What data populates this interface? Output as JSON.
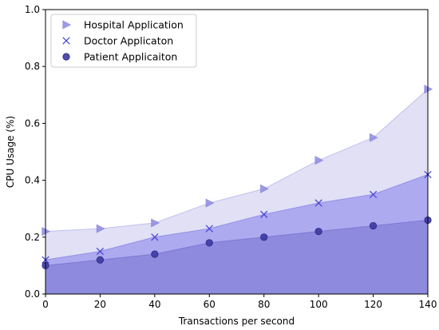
{
  "chart_data": {
    "type": "area",
    "xlabel": "Transactions per second",
    "ylabel": "CPU Usage (%)",
    "x": [
      0,
      20,
      40,
      60,
      80,
      100,
      120,
      140
    ],
    "xlim": [
      0,
      140
    ],
    "ylim": [
      0.0,
      1.0
    ],
    "xticks": [
      0,
      20,
      40,
      60,
      80,
      100,
      120,
      140
    ],
    "yticks": [
      0.0,
      0.2,
      0.4,
      0.6,
      0.8,
      1.0
    ],
    "xtick_labels": [
      "0",
      "20",
      "40",
      "60",
      "80",
      "100",
      "120",
      "140"
    ],
    "ytick_labels": [
      "0.0",
      "0.2",
      "0.4",
      "0.6",
      "0.8",
      "1.0"
    ],
    "grid": false,
    "legend_position": "top-left",
    "series": [
      {
        "name": "Hospital Application",
        "marker": "triangle-right",
        "fill_color": "#e1e0f5",
        "line_color": "#c2c1ec",
        "marker_color": "#8e8be0",
        "values": [
          0.22,
          0.23,
          0.25,
          0.32,
          0.37,
          0.47,
          0.55,
          0.72
        ]
      },
      {
        "name": "Doctor Applicaton",
        "marker": "x",
        "fill_color": "#aeaaf0",
        "line_color": "#9390e6",
        "marker_color": "#4b48d6",
        "values": [
          0.12,
          0.15,
          0.2,
          0.23,
          0.28,
          0.32,
          0.35,
          0.42
        ]
      },
      {
        "name": "Patient Applicaiton",
        "marker": "circle",
        "fill_color": "#8e8ade",
        "line_color": "#7d79d4",
        "marker_color": "#3c3aa4",
        "values": [
          0.1,
          0.12,
          0.14,
          0.18,
          0.2,
          0.22,
          0.24,
          0.26
        ]
      }
    ]
  }
}
